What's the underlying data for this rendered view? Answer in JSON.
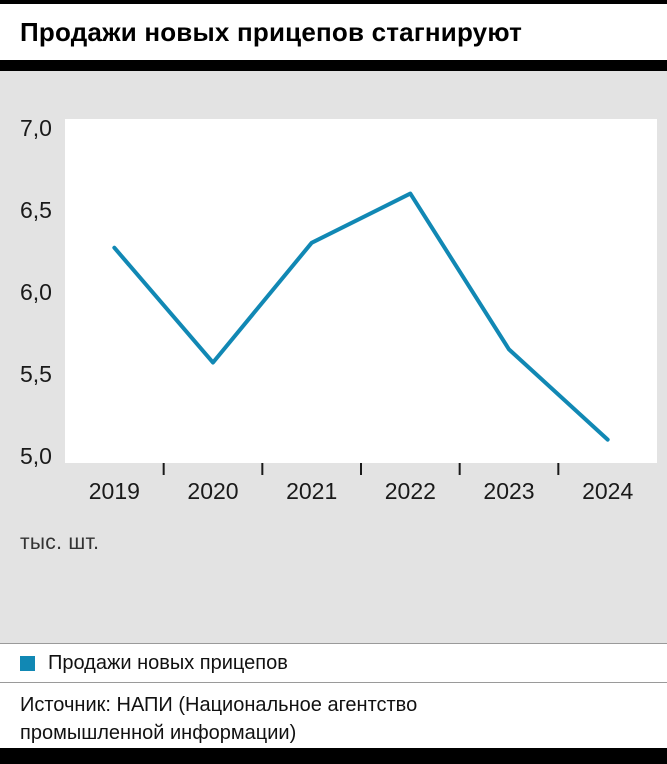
{
  "title": "Продажи новых прицепов стагнируют",
  "unit_label": "тыс. шт.",
  "legend": {
    "label": "Продажи новых прицепов",
    "swatch_color": "#1188b4"
  },
  "source": {
    "line1": "Источник: НАПИ (Национальное агентство",
    "line2": "промышленной информации)"
  },
  "colors": {
    "line": "#1188b4",
    "chart_bg": "#e3e3e3",
    "plot_bg": "#ffffff",
    "rule": "#000000",
    "tick_text": "#1a1a1a"
  },
  "chart_data": {
    "type": "line",
    "title": "Продажи новых прицепов стагнируют",
    "categories": [
      "2019",
      "2020",
      "2021",
      "2022",
      "2023",
      "2024"
    ],
    "series": [
      {
        "name": "Продажи новых прицепов",
        "values": [
          6.27,
          5.57,
          6.3,
          6.6,
          5.65,
          5.1
        ]
      }
    ],
    "xlabel": "",
    "ylabel": "тыс. шт.",
    "ylim": [
      5.0,
      7.0
    ],
    "yticks": [
      5.0,
      5.5,
      6.0,
      6.5,
      7.0
    ],
    "ytick_labels": [
      "5,0",
      "5,5",
      "6,0",
      "6,5",
      "7,0"
    ],
    "grid": false,
    "legend_position": "bottom"
  }
}
